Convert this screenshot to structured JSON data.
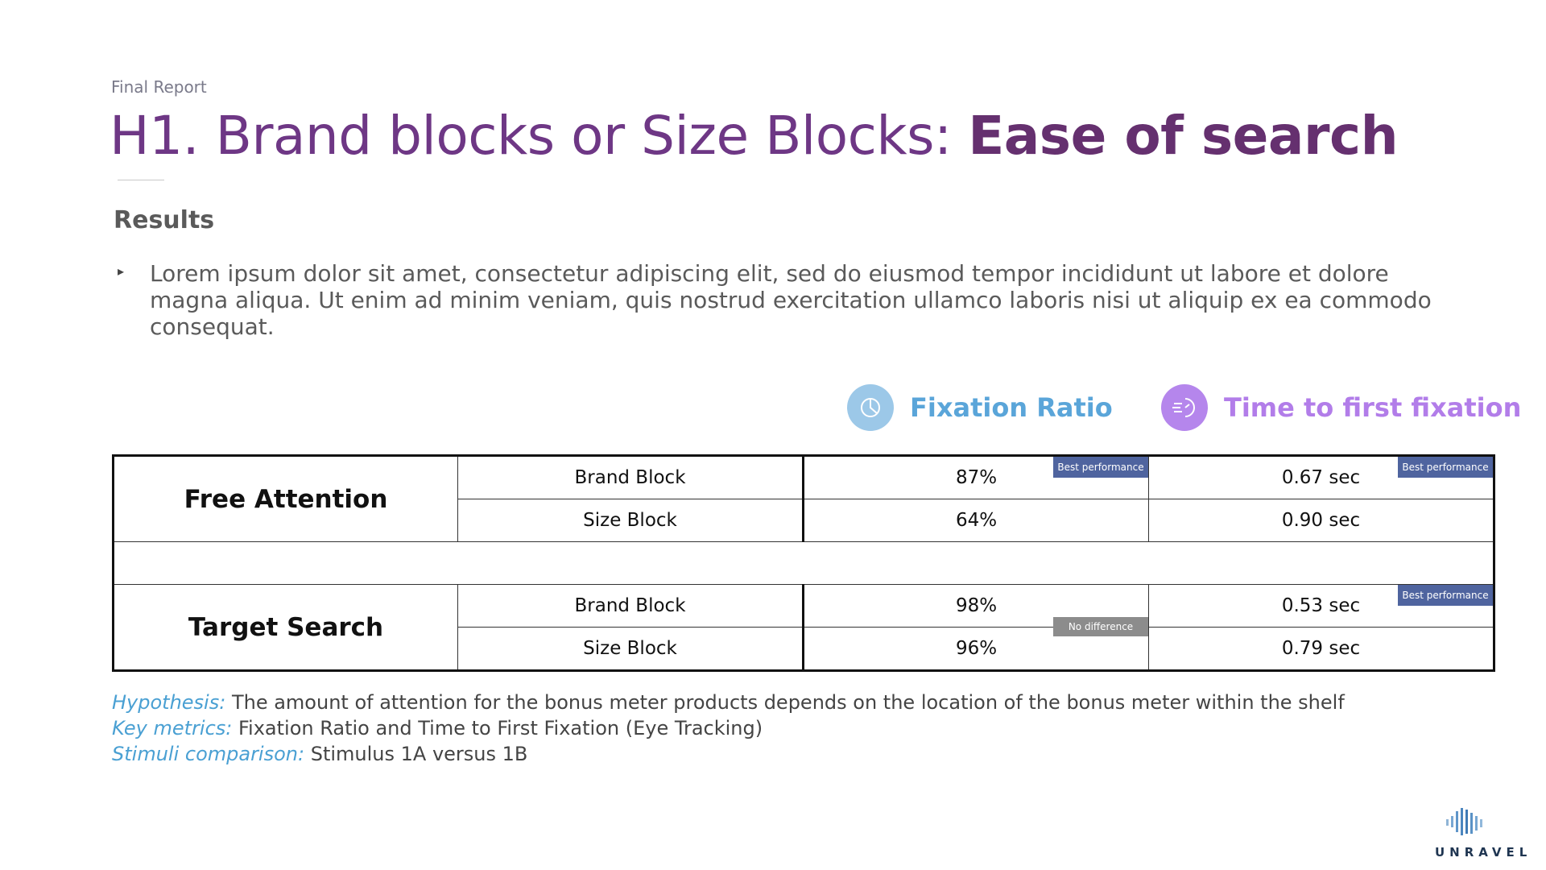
{
  "header": {
    "kicker": "Final Report",
    "title_regular": "H1. Brand blocks or Size Blocks: ",
    "title_bold": "Ease of search"
  },
  "results": {
    "heading": "Results",
    "bullet": "Lorem ipsum dolor sit amet, consectetur adipiscing elit, sed do eiusmod tempor incididunt ut labore et dolore magna aliqua. Ut enim ad minim veniam, quis nostrud exercitation ullamco laboris nisi ut aliquip ex ea commodo consequat."
  },
  "metrics": {
    "fixation_ratio": {
      "label": "Fixation Ratio",
      "icon": "pie-chart-icon",
      "color": "#5aa5d9"
    },
    "time_to_first_fixation": {
      "label": "Time to first fixation",
      "icon": "speed-timer-icon",
      "color": "#b27de9"
    }
  },
  "table": {
    "groups": [
      {
        "name": "Free Attention",
        "rows": [
          {
            "stimulus": "Brand Block",
            "fixation_ratio": "87%",
            "ttff": "0.67 sec",
            "fixation_badge": "Best performance",
            "ttff_badge": "Best performance"
          },
          {
            "stimulus": "Size Block",
            "fixation_ratio": "64%",
            "ttff": "0.90 sec"
          }
        ]
      },
      {
        "name": "Target Search",
        "rows": [
          {
            "stimulus": "Brand Block",
            "fixation_ratio": "98%",
            "ttff": "0.53 sec",
            "ttff_badge": "Best performance"
          },
          {
            "stimulus": "Size Block",
            "fixation_ratio": "96%",
            "ttff": "0.79 sec"
          }
        ],
        "fixation_badge": "No difference"
      }
    ]
  },
  "footnotes": {
    "hypothesis_key": "Hypothesis:",
    "hypothesis_text": " The amount of attention for the bonus meter products depends on the location of the bonus meter within the shelf",
    "metrics_key": "Key metrics:",
    "metrics_text": " Fixation Ratio and Time to First Fixation (Eye Tracking)",
    "stimuli_key": "Stimuli comparison:",
    "stimuli_text": " Stimulus 1A versus 1B"
  },
  "logo": {
    "text": "UNRAVEL",
    "icon": "soundwave-logo-icon",
    "color": "#1f3551"
  }
}
